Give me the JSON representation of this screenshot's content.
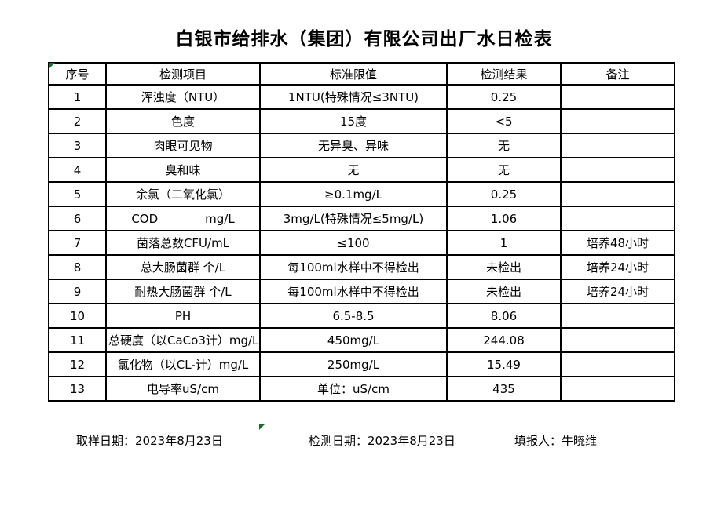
{
  "title": "白银市给排水（集团）有限公司出厂水日检表",
  "table": {
    "headers": [
      "序号",
      "检测项目",
      "标准限值",
      "检测结果",
      "备注"
    ],
    "rows": [
      {
        "no": "1",
        "item": "浑浊度（NTU）",
        "limit": "1NTU(特殊情况≤3NTU)",
        "result": "0.25",
        "remark": ""
      },
      {
        "no": "2",
        "item": "色度",
        "limit": "15度",
        "result": "<5",
        "remark": ""
      },
      {
        "no": "3",
        "item": "肉眼可见物",
        "limit": "无异臭、异味",
        "result": "无",
        "remark": ""
      },
      {
        "no": "4",
        "item": "臭和味",
        "limit": "无",
        "result": "无",
        "remark": ""
      },
      {
        "no": "5",
        "item": "余氯（二氧化氯）",
        "limit": "≥0.1mg/L",
        "result": "0.25",
        "remark": ""
      },
      {
        "no": "6",
        "item": "COD　　　　mg/L",
        "limit": "3mg/L(特殊情况≤5mg/L)",
        "result": "1.06",
        "remark": ""
      },
      {
        "no": "7",
        "item": "菌落总数CFU/mL",
        "limit": "≤100",
        "result": "1",
        "remark": "培养48小时"
      },
      {
        "no": "8",
        "item": "总大肠菌群 个/L",
        "limit": "每100ml水样中不得检出",
        "result": "未检出",
        "remark": "培养24小时"
      },
      {
        "no": "9",
        "item": "耐热大肠菌群 个/L",
        "limit": "每100ml水样中不得检出",
        "result": "未检出",
        "remark": "培养24小时"
      },
      {
        "no": "10",
        "item": "PH",
        "limit": "6.5-8.5",
        "result": "8.06",
        "remark": ""
      },
      {
        "no": "11",
        "item": "总硬度（以CaCo3计）mg/L",
        "limit": "450mg/L",
        "result": "244.08",
        "remark": ""
      },
      {
        "no": "12",
        "item": "氯化物（以CL-计）mg/L",
        "limit": "250mg/L",
        "result": "15.49",
        "remark": ""
      },
      {
        "no": "13",
        "item": "电导率uS/cm",
        "limit": "单位：uS/cm",
        "result": "435",
        "remark": ""
      }
    ]
  },
  "footer": {
    "sample_date_label": "取样日期：",
    "sample_date": "2023年8月23日",
    "test_date_label": "检测日期：",
    "test_date": "2023年8月23日",
    "reporter_label": "填报人：",
    "reporter": "牛晓维"
  },
  "colors": {
    "marker_green": "#1e6e2e",
    "border_black": "#000000",
    "background": "#ffffff"
  }
}
